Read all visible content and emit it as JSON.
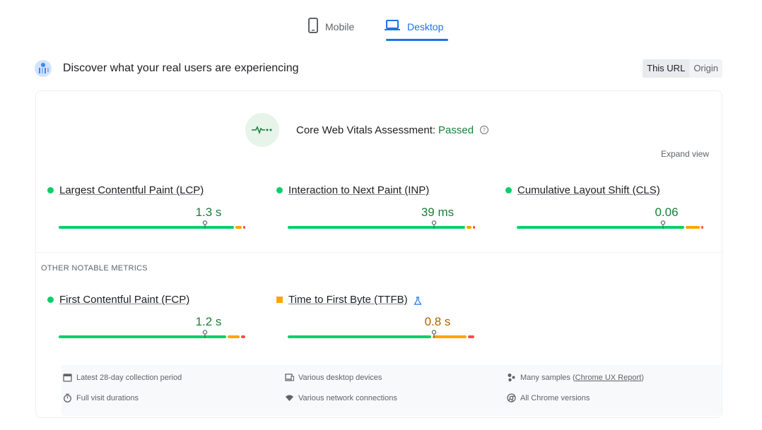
{
  "tabs": {
    "mobile": {
      "label": "Mobile",
      "icon": "phone-icon"
    },
    "desktop": {
      "label": "Desktop",
      "icon": "laptop-icon",
      "selected": true
    }
  },
  "section": {
    "title": "Discover what your real users are experiencing",
    "toggle": [
      "This URL",
      "Origin"
    ],
    "toggle_selected": "This URL"
  },
  "assessment": {
    "label": "Core Web Vitals Assessment:",
    "status": "Passed",
    "status_color": "#188038",
    "expand": "Expand view"
  },
  "core_metrics": [
    {
      "name": "Largest Contentful Paint (LCP)",
      "value": "1.3 s",
      "status": "good",
      "marker": 0.78,
      "segments": [
        0.94,
        0.04,
        0.02
      ]
    },
    {
      "name": "Interaction to Next Paint (INP)",
      "value": "39 ms",
      "status": "good",
      "marker": 0.78,
      "segments": [
        0.95,
        0.035,
        0.015
      ]
    },
    {
      "name": "Cumulative Layout Shift (CLS)",
      "value": "0.06",
      "status": "good",
      "marker": 0.78,
      "segments": [
        0.9,
        0.08,
        0.02
      ]
    }
  ],
  "other_title": "OTHER NOTABLE METRICS",
  "other_metrics": [
    {
      "name": "First Contentful Paint (FCP)",
      "value": "1.2 s",
      "status": "good",
      "marker": 0.78,
      "segments": [
        0.9,
        0.07,
        0.03
      ]
    },
    {
      "name": "Time to First Byte (TTFB)",
      "value": "0.8 s",
      "status": "needs-improvement",
      "marker": 0.78,
      "segments": [
        0.77,
        0.19,
        0.04
      ],
      "experimental": true
    }
  ],
  "footer": {
    "period": "Latest 28-day collection period",
    "devices": "Various desktop devices",
    "samples_prefix": "Many samples (",
    "samples_link": "Chrome UX Report",
    "samples_suffix": ")",
    "durations": "Full visit durations",
    "network": "Various network connections",
    "chrome": "All Chrome versions"
  },
  "colors": {
    "good": "#0cce6b",
    "average": "#ffa400",
    "poor": "#ff4e42",
    "accent": "#1a73e8"
  }
}
